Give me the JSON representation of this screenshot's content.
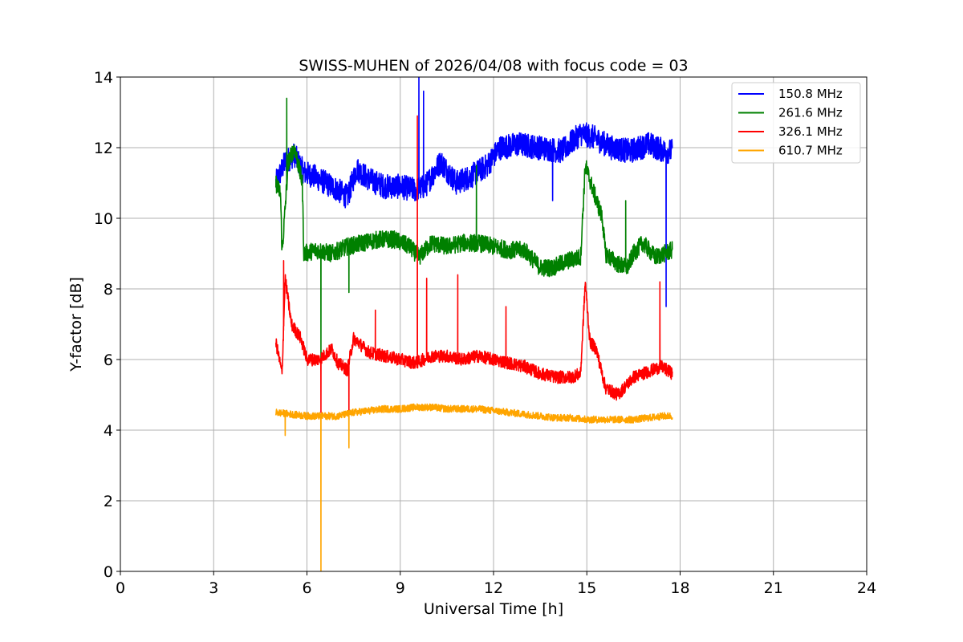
{
  "chart_data": {
    "type": "line",
    "title": "SWISS-MUHEN of 2026/04/08 with focus code = 03",
    "xlabel": "Universal Time [h]",
    "ylabel": "Y-factor [dB]",
    "xlim": [
      0,
      24
    ],
    "ylim": [
      0,
      14
    ],
    "xticks": [
      0,
      3,
      6,
      9,
      12,
      15,
      18,
      21,
      24
    ],
    "yticks": [
      0,
      2,
      4,
      6,
      8,
      10,
      12,
      14
    ],
    "grid": true,
    "legend_position": "top-right",
    "x_range_observed": [
      5.0,
      17.75
    ],
    "series": [
      {
        "name": "150.8 MHz",
        "color": "#0000ff",
        "noise": 0.35,
        "points": [
          [
            5.0,
            11.0
          ],
          [
            5.3,
            11.6
          ],
          [
            5.6,
            11.8
          ],
          [
            5.9,
            11.3
          ],
          [
            6.2,
            11.2
          ],
          [
            6.6,
            11.0
          ],
          [
            7.0,
            10.8
          ],
          [
            7.3,
            10.6
          ],
          [
            7.6,
            11.4
          ],
          [
            8.0,
            11.1
          ],
          [
            8.5,
            10.9
          ],
          [
            9.0,
            10.9
          ],
          [
            9.5,
            10.8
          ],
          [
            9.8,
            10.9
          ],
          [
            10.3,
            11.6
          ],
          [
            10.8,
            11.0
          ],
          [
            11.3,
            11.2
          ],
          [
            11.8,
            11.5
          ],
          [
            12.2,
            12.0
          ],
          [
            12.8,
            12.1
          ],
          [
            13.5,
            12.0
          ],
          [
            14.2,
            11.9
          ],
          [
            14.8,
            12.4
          ],
          [
            15.2,
            12.3
          ],
          [
            15.8,
            12.0
          ],
          [
            16.4,
            11.9
          ],
          [
            17.0,
            12.1
          ],
          [
            17.5,
            11.9
          ],
          [
            17.75,
            11.9
          ]
        ],
        "spikes": [
          [
            9.6,
            14.0
          ],
          [
            9.75,
            13.6
          ],
          [
            13.9,
            10.5
          ],
          [
            17.55,
            7.5
          ]
        ]
      },
      {
        "name": "261.6 MHz",
        "color": "#008000",
        "noise": 0.25,
        "points": [
          [
            5.0,
            11.0
          ],
          [
            5.15,
            10.7
          ],
          [
            5.2,
            9.0
          ],
          [
            5.4,
            11.6
          ],
          [
            5.6,
            12.0
          ],
          [
            5.85,
            11.0
          ],
          [
            5.9,
            9.0
          ],
          [
            6.3,
            9.1
          ],
          [
            6.8,
            9.0
          ],
          [
            7.3,
            9.2
          ],
          [
            7.8,
            9.3
          ],
          [
            8.3,
            9.4
          ],
          [
            8.8,
            9.4
          ],
          [
            9.3,
            9.2
          ],
          [
            9.6,
            8.9
          ],
          [
            10.0,
            9.3
          ],
          [
            10.5,
            9.2
          ],
          [
            11.0,
            9.3
          ],
          [
            11.5,
            9.3
          ],
          [
            12.0,
            9.2
          ],
          [
            12.5,
            9.1
          ],
          [
            13.0,
            9.1
          ],
          [
            13.5,
            8.6
          ],
          [
            13.9,
            8.6
          ],
          [
            14.4,
            8.8
          ],
          [
            14.8,
            8.9
          ],
          [
            14.95,
            11.5
          ],
          [
            15.2,
            10.8
          ],
          [
            15.5,
            10.0
          ],
          [
            15.6,
            9.0
          ],
          [
            16.0,
            8.7
          ],
          [
            16.3,
            8.6
          ],
          [
            16.5,
            9.0
          ],
          [
            16.8,
            9.3
          ],
          [
            17.2,
            8.9
          ],
          [
            17.5,
            9.0
          ],
          [
            17.75,
            9.1
          ]
        ],
        "spikes": [
          [
            5.35,
            13.4
          ],
          [
            6.45,
            6.0
          ],
          [
            7.35,
            7.9
          ],
          [
            11.45,
            11.5
          ],
          [
            16.25,
            10.5
          ]
        ]
      },
      {
        "name": "326.1 MHz",
        "color": "#ff0000",
        "noise": 0.18,
        "points": [
          [
            5.0,
            6.5
          ],
          [
            5.2,
            5.6
          ],
          [
            5.3,
            8.3
          ],
          [
            5.5,
            7.0
          ],
          [
            5.8,
            6.6
          ],
          [
            6.0,
            6.0
          ],
          [
            6.4,
            6.0
          ],
          [
            6.8,
            6.3
          ],
          [
            7.0,
            5.9
          ],
          [
            7.3,
            5.7
          ],
          [
            7.5,
            6.6
          ],
          [
            8.0,
            6.2
          ],
          [
            8.5,
            6.1
          ],
          [
            9.0,
            6.0
          ],
          [
            9.5,
            5.9
          ],
          [
            10.0,
            6.1
          ],
          [
            10.5,
            6.1
          ],
          [
            11.0,
            6.0
          ],
          [
            11.5,
            6.1
          ],
          [
            12.0,
            6.0
          ],
          [
            12.5,
            5.9
          ],
          [
            13.0,
            5.8
          ],
          [
            13.5,
            5.6
          ],
          [
            14.0,
            5.5
          ],
          [
            14.5,
            5.5
          ],
          [
            14.8,
            5.6
          ],
          [
            14.95,
            8.2
          ],
          [
            15.1,
            6.5
          ],
          [
            15.3,
            6.3
          ],
          [
            15.6,
            5.2
          ],
          [
            16.0,
            5.0
          ],
          [
            16.3,
            5.3
          ],
          [
            16.5,
            5.5
          ],
          [
            16.8,
            5.6
          ],
          [
            17.1,
            5.7
          ],
          [
            17.4,
            5.8
          ],
          [
            17.75,
            5.6
          ]
        ],
        "spikes": [
          [
            5.25,
            8.8
          ],
          [
            6.45,
            4.5
          ],
          [
            7.35,
            4.5
          ],
          [
            8.2,
            7.4
          ],
          [
            9.55,
            12.9
          ],
          [
            9.85,
            8.3
          ],
          [
            10.85,
            8.4
          ],
          [
            12.4,
            7.5
          ],
          [
            17.35,
            8.2
          ]
        ]
      },
      {
        "name": "610.7 MHz",
        "color": "#ffa500",
        "noise": 0.1,
        "points": [
          [
            5.0,
            4.5
          ],
          [
            5.5,
            4.45
          ],
          [
            6.0,
            4.4
          ],
          [
            6.5,
            4.4
          ],
          [
            7.0,
            4.4
          ],
          [
            7.5,
            4.5
          ],
          [
            8.0,
            4.55
          ],
          [
            8.5,
            4.6
          ],
          [
            9.0,
            4.6
          ],
          [
            9.5,
            4.65
          ],
          [
            10.0,
            4.65
          ],
          [
            10.5,
            4.6
          ],
          [
            11.0,
            4.6
          ],
          [
            11.5,
            4.6
          ],
          [
            12.0,
            4.55
          ],
          [
            12.5,
            4.5
          ],
          [
            13.0,
            4.45
          ],
          [
            13.5,
            4.4
          ],
          [
            14.0,
            4.35
          ],
          [
            14.5,
            4.35
          ],
          [
            15.0,
            4.3
          ],
          [
            15.5,
            4.3
          ],
          [
            16.0,
            4.3
          ],
          [
            16.5,
            4.3
          ],
          [
            17.0,
            4.35
          ],
          [
            17.5,
            4.4
          ],
          [
            17.75,
            4.4
          ]
        ],
        "spikes": [
          [
            5.3,
            3.85
          ],
          [
            6.45,
            0.0
          ],
          [
            7.35,
            3.5
          ]
        ]
      }
    ]
  }
}
